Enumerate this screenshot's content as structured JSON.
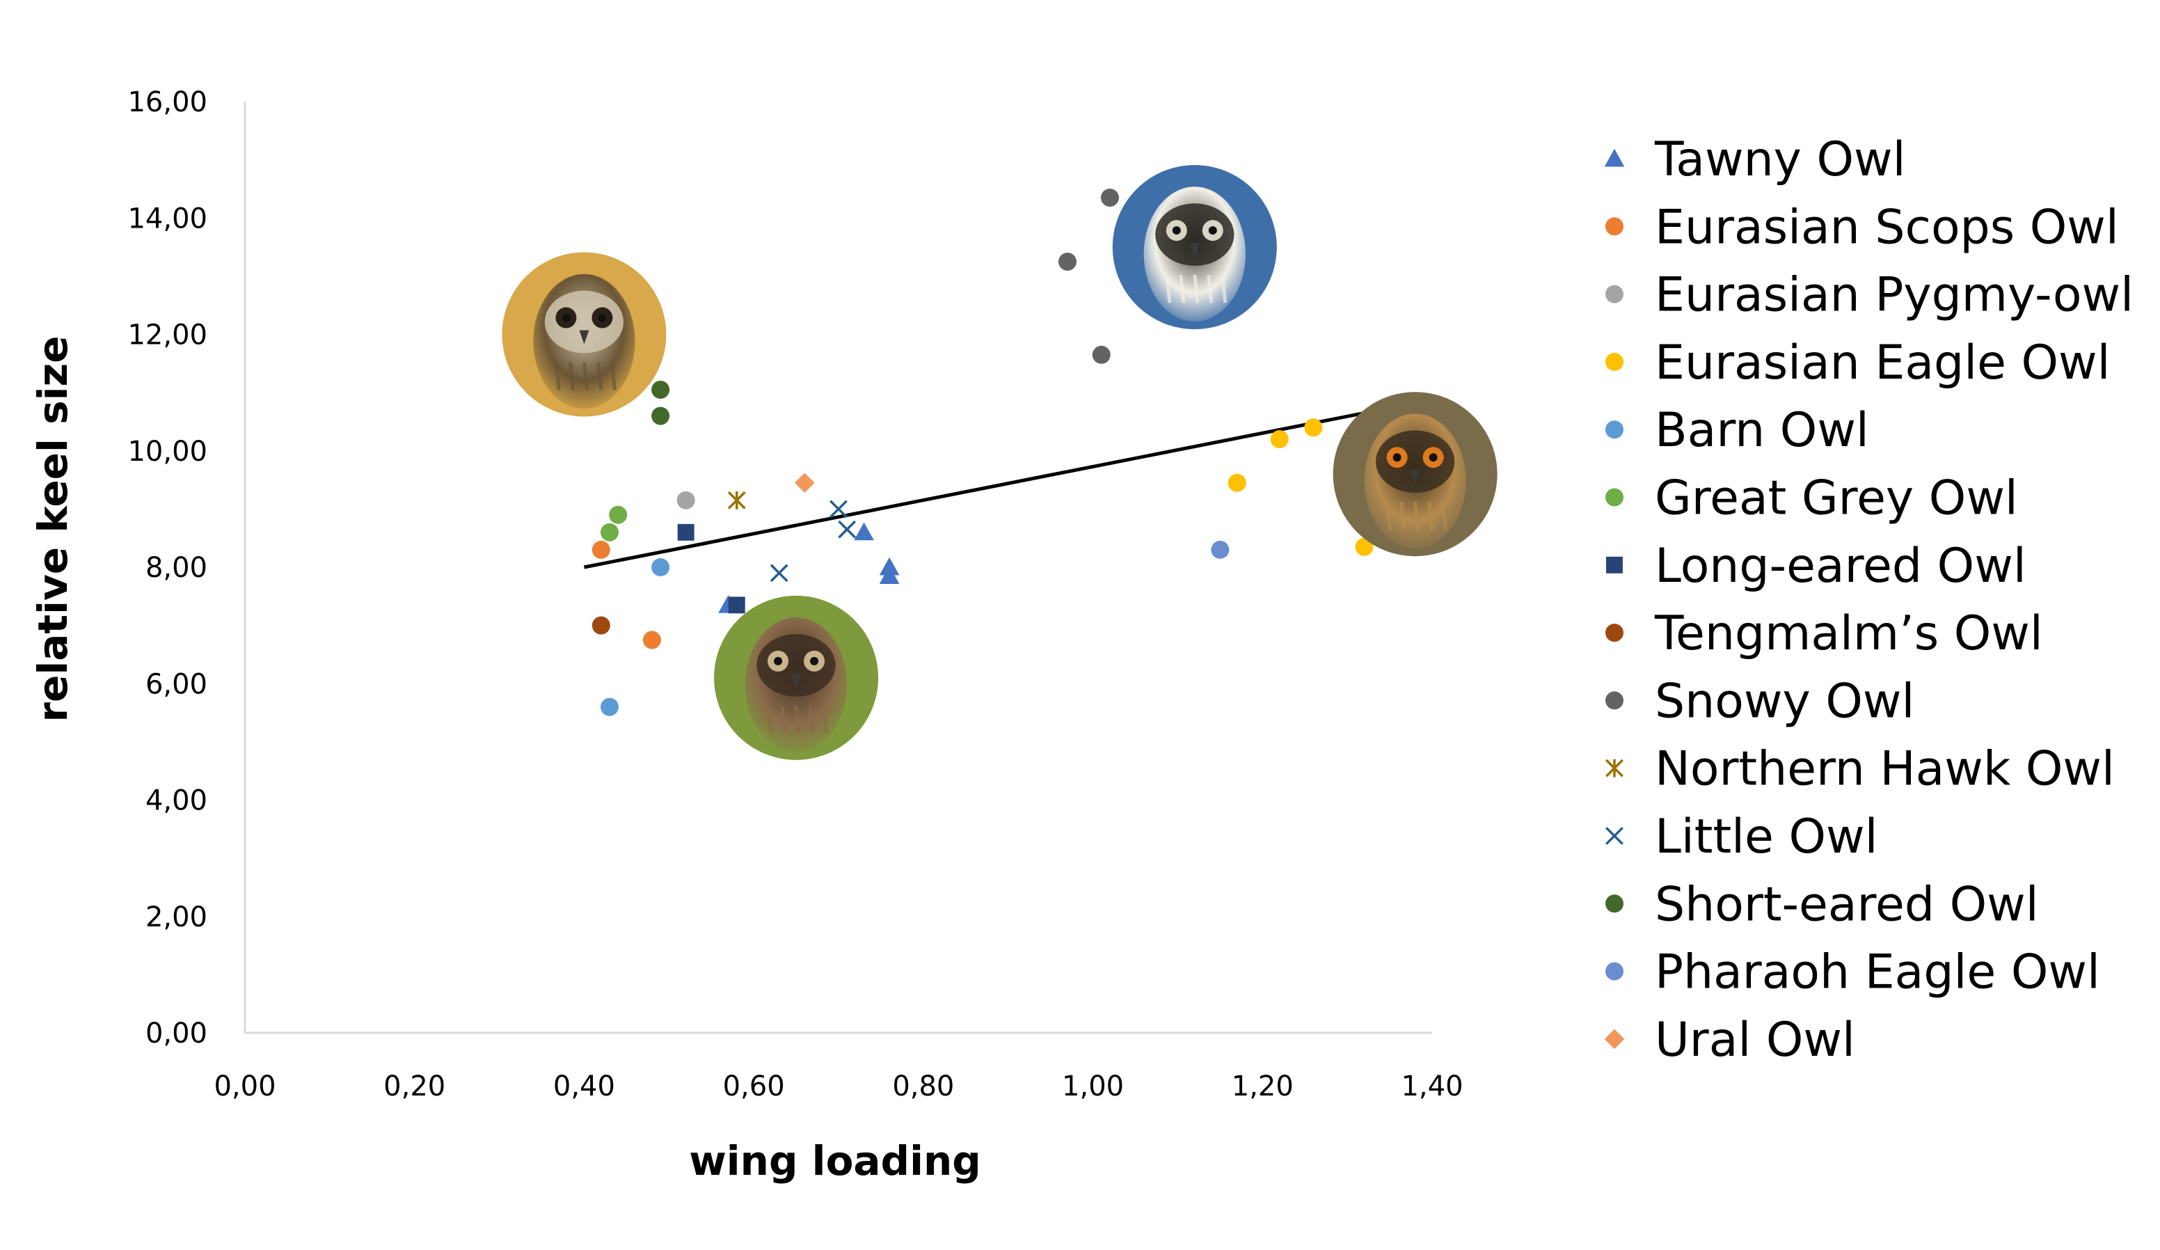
{
  "chart_data": {
    "type": "scatter",
    "title": "",
    "xlabel": "wing loading",
    "ylabel": "relative keel size",
    "xlim": [
      0,
      1.4
    ],
    "ylim": [
      0,
      16
    ],
    "xticks": [
      "0,00",
      "0,20",
      "0,40",
      "0,60",
      "0,80",
      "1,00",
      "1,20",
      "1,40"
    ],
    "yticks": [
      "0,00",
      "2,00",
      "4,00",
      "6,00",
      "8,00",
      "10,00",
      "12,00",
      "14,00",
      "16,00"
    ],
    "grid": false,
    "legend_position": "right",
    "trendline": {
      "x": [
        0.4,
        1.32
      ],
      "y": [
        8.0,
        10.65
      ],
      "color": "#000000"
    },
    "series": [
      {
        "name": "Tawny Owl",
        "marker": "triangle",
        "color": "#4472C4",
        "points": [
          [
            0.57,
            7.35
          ],
          [
            0.73,
            8.6
          ],
          [
            0.76,
            8.0
          ],
          [
            0.76,
            7.85
          ]
        ]
      },
      {
        "name": "Eurasian Scops Owl",
        "marker": "circle",
        "color": "#ED7D31",
        "points": [
          [
            0.42,
            8.3
          ],
          [
            0.48,
            6.75
          ]
        ]
      },
      {
        "name": "Eurasian Pygmy-owl",
        "marker": "circle",
        "color": "#A5A5A5",
        "points": [
          [
            0.52,
            9.15
          ]
        ]
      },
      {
        "name": "Eurasian Eagle Owl",
        "marker": "circle",
        "color": "#FFC000",
        "points": [
          [
            1.17,
            9.45
          ],
          [
            1.22,
            10.2
          ],
          [
            1.26,
            10.4
          ],
          [
            1.32,
            8.35
          ]
        ]
      },
      {
        "name": "Barn Owl",
        "marker": "circle",
        "color": "#5B9BD5",
        "points": [
          [
            0.49,
            8.0
          ],
          [
            0.43,
            5.6
          ]
        ]
      },
      {
        "name": "Great Grey Owl",
        "marker": "circle",
        "color": "#70AD47",
        "points": [
          [
            0.43,
            8.6
          ],
          [
            0.44,
            8.9
          ]
        ]
      },
      {
        "name": "Long-eared Owl",
        "marker": "square",
        "color": "#264478",
        "points": [
          [
            0.52,
            8.6
          ],
          [
            0.58,
            7.35
          ]
        ]
      },
      {
        "name": "Tengmalm’s Owl",
        "marker": "circle",
        "color": "#9E480E",
        "points": [
          [
            0.42,
            7.0
          ]
        ]
      },
      {
        "name": "Snowy Owl",
        "marker": "circle",
        "color": "#636363",
        "points": [
          [
            0.97,
            13.25
          ],
          [
            1.02,
            14.35
          ],
          [
            1.01,
            11.65
          ]
        ]
      },
      {
        "name": "Northern Hawk Owl",
        "marker": "star",
        "color": "#997300",
        "points": [
          [
            0.58,
            9.15
          ]
        ]
      },
      {
        "name": "Little Owl",
        "marker": "x",
        "color": "#255E91",
        "points": [
          [
            0.7,
            9.0
          ],
          [
            0.71,
            8.65
          ],
          [
            0.63,
            7.9
          ]
        ]
      },
      {
        "name": "Short-eared Owl",
        "marker": "circle",
        "color": "#43682B",
        "points": [
          [
            0.49,
            11.05
          ],
          [
            0.49,
            10.6
          ]
        ]
      },
      {
        "name": "Pharaoh Eagle Owl",
        "marker": "circle",
        "color": "#698ED0",
        "points": [
          [
            1.15,
            8.3
          ]
        ]
      },
      {
        "name": "Ural Owl",
        "marker": "diamond",
        "color": "#F1975A",
        "points": [
          [
            0.66,
            9.45
          ]
        ]
      }
    ],
    "images": [
      {
        "icon": "short-eared-owl-photo-icon",
        "x": 0.4,
        "y": 12.0,
        "palette": [
          "#d9a84a",
          "#6b5636",
          "#cfc4ae",
          "#2a2218"
        ]
      },
      {
        "icon": "snowy-owl-photo-icon",
        "x": 1.12,
        "y": 13.5,
        "palette": [
          "#3f6fa8",
          "#f2efe6",
          "#2d2a24",
          "#d9d4c4"
        ]
      },
      {
        "icon": "eurasian-eagle-owl-photo-icon",
        "x": 1.38,
        "y": 9.6,
        "palette": [
          "#7a6b4a",
          "#b58a4e",
          "#3a2e1e",
          "#e07a1e"
        ]
      },
      {
        "icon": "long-eared-owl-photo-icon",
        "x": 0.65,
        "y": 6.1,
        "palette": [
          "#7e9a3c",
          "#8a6a4a",
          "#3d2e22",
          "#c9b48e"
        ]
      }
    ]
  }
}
